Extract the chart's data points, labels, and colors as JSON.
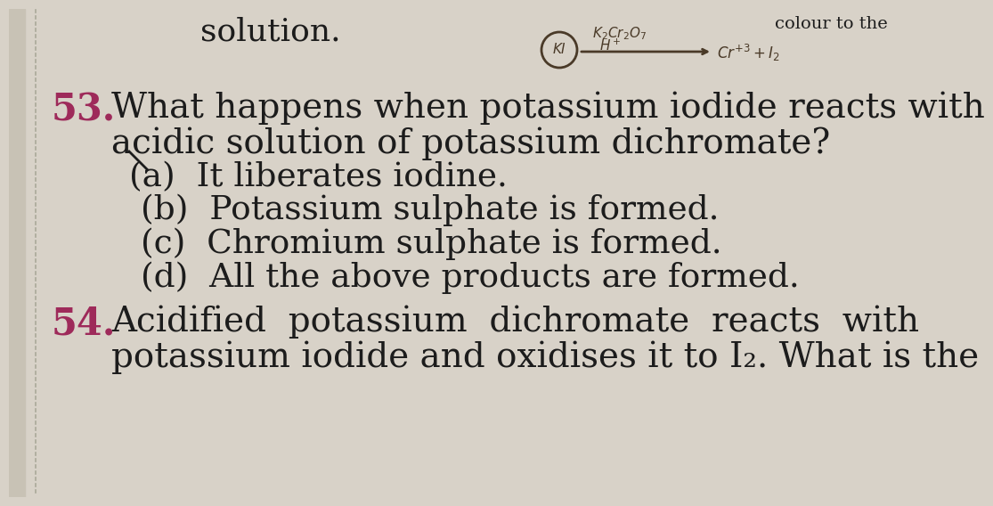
{
  "background_color": "#d8d2c8",
  "left_margin_color": "#c8c2b5",
  "dot_line_color": "#aaa899",
  "top_text": "solution.",
  "q53_number": "53.",
  "q53_line1": "What happens when potassium iodide reacts with",
  "q53_line2": "acidic solution of potassium dichromate?",
  "option_a": "(a)  It liberates iodine.",
  "option_b": "(b)  Potassium sulphate is formed.",
  "option_c": "(c)  Chromium sulphate is formed.",
  "option_d": "(d)  All the above products are formed.",
  "q54_number": "54.",
  "q54_line1": "Acidified  potassium  dichromate  reacts  with",
  "q54_line2": "potassium iodide and oxidises it to I₂. What is the",
  "text_color": "#1c1c1c",
  "number_color": "#9e2a5a",
  "font_size_main": 28,
  "font_size_options": 27,
  "font_size_number": 30,
  "font_size_top": 26,
  "font_size_hand": 12,
  "hand_color": "#4a3a28"
}
